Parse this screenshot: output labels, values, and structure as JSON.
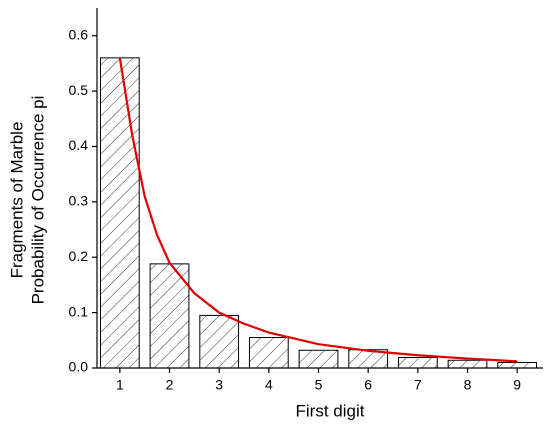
{
  "chart_data": {
    "type": "bar",
    "x_label": "First digit",
    "y_label": [
      "Fragments of Marble",
      "Probability of Occurrence pi"
    ],
    "x": [
      1,
      2,
      3,
      4,
      5,
      6,
      7,
      8,
      9
    ],
    "values": [
      0.56,
      0.188,
      0.095,
      0.055,
      0.032,
      0.033,
      0.019,
      0.014,
      0.01
    ],
    "fit": {
      "type": "line",
      "color": "#e00000",
      "x": [
        1,
        1.25,
        1.5,
        1.75,
        2,
        2.5,
        3,
        3.5,
        4,
        5,
        6,
        7,
        8,
        9
      ],
      "values": [
        0.56,
        0.42,
        0.31,
        0.24,
        0.19,
        0.135,
        0.1,
        0.08,
        0.064,
        0.043,
        0.031,
        0.023,
        0.017,
        0.012
      ]
    },
    "xlim": [
      0.54,
      9.52
    ],
    "ylim": [
      0,
      0.65
    ],
    "xticks": [
      1,
      2,
      3,
      4,
      5,
      6,
      7,
      8,
      9
    ],
    "yticks": [
      {
        "value": 0,
        "label": "0.0"
      },
      0.1,
      0.2,
      0.3,
      0.4,
      0.5,
      0.6
    ]
  }
}
